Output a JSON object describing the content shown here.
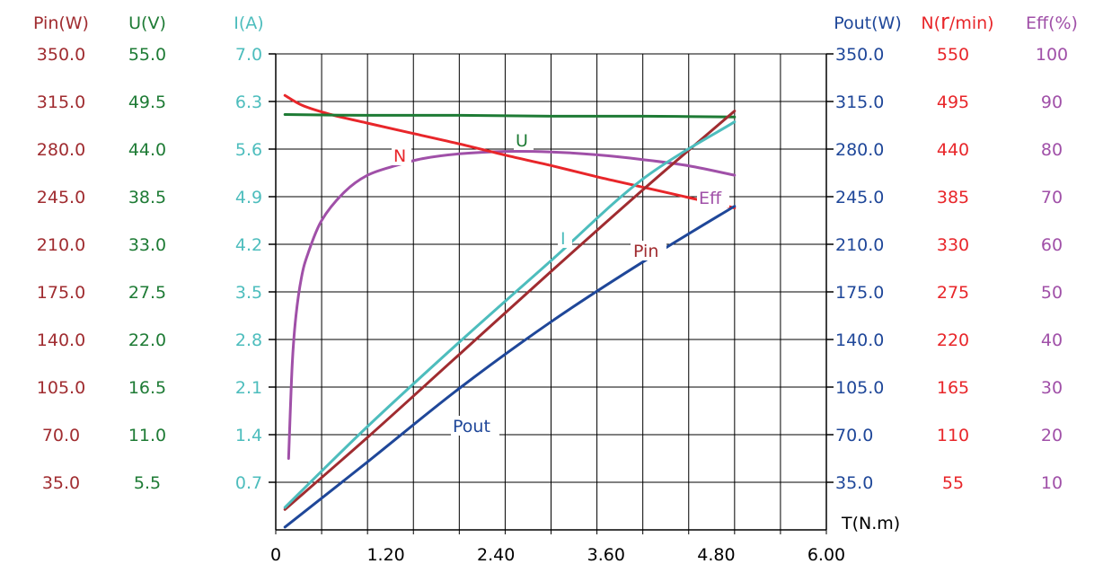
{
  "colors": {
    "pin": "#a02c30",
    "u": "#1e7b35",
    "i": "#4dbdbd",
    "pout": "#1f4799",
    "n": "#e8262a",
    "eff": "#a050a8",
    "axis": "#000000"
  },
  "chart_data": {
    "type": "line",
    "xlabel": "T(N.m)",
    "x_ticks": [
      "0",
      "1.20",
      "2.40",
      "3.60",
      "4.80",
      "6.00"
    ],
    "xlim": [
      0,
      6
    ],
    "axes": {
      "pin": {
        "label": "Pin(W)",
        "ticks": [
          "350.0",
          "315.0",
          "280.0",
          "245.0",
          "210.0",
          "175.0",
          "140.0",
          "105.0",
          "70.0",
          "35.0"
        ],
        "max": 350
      },
      "u": {
        "label": "U(V)",
        "ticks": [
          "55.0",
          "49.5",
          "44.0",
          "38.5",
          "33.0",
          "27.5",
          "22.0",
          "16.5",
          "11.0",
          "5.5"
        ],
        "max": 55
      },
      "i": {
        "label": "I(A)",
        "ticks": [
          "7.0",
          "6.3",
          "5.6",
          "4.9",
          "4.2",
          "3.5",
          "2.8",
          "2.1",
          "1.4",
          "0.7"
        ],
        "max": 7
      },
      "pout": {
        "label": "Pout(W)",
        "ticks": [
          "350.0",
          "315.0",
          "280.0",
          "245.0",
          "210.0",
          "175.0",
          "140.0",
          "105.0",
          "70.0",
          "35.0"
        ],
        "max": 350
      },
      "n": {
        "label_prefix": "N(",
        "label_r": "r",
        "label_suffix": "/min)",
        "ticks": [
          "550",
          "495",
          "440",
          "385",
          "330",
          "275",
          "220",
          "165",
          "110",
          "55"
        ],
        "max": 550
      },
      "eff": {
        "label": "Eff(%)",
        "ticks": [
          "100",
          "90",
          "80",
          "70",
          "60",
          "50",
          "40",
          "30",
          "20",
          "10"
        ],
        "max": 100
      }
    },
    "series": [
      {
        "name": "U",
        "axis": "u",
        "x": [
          0.1,
          1.0,
          2.0,
          3.0,
          4.0,
          5.0
        ],
        "y": [
          48.0,
          47.9,
          47.9,
          47.8,
          47.8,
          47.7
        ]
      },
      {
        "name": "N",
        "axis": "n",
        "x": [
          0.1,
          0.3,
          0.6,
          1.0,
          1.5,
          2.0,
          2.5,
          3.0,
          3.5,
          4.0,
          4.5,
          5.0
        ],
        "y": [
          502,
          490,
          480,
          470,
          458,
          446,
          433,
          421,
          408,
          396,
          384,
          372
        ]
      },
      {
        "name": "I",
        "axis": "i",
        "x": [
          0.1,
          1.0,
          2.0,
          3.0,
          4.0,
          5.0
        ],
        "y": [
          0.33,
          1.52,
          2.76,
          3.96,
          5.16,
          6.0
        ]
      },
      {
        "name": "Pin",
        "axis": "pin",
        "x": [
          0.1,
          1.0,
          2.0,
          3.0,
          4.0,
          5.0
        ],
        "y": [
          15,
          68,
          129,
          190,
          250,
          308
        ]
      },
      {
        "name": "Pout",
        "axis": "pout",
        "x": [
          0.1,
          1.0,
          2.0,
          3.0,
          4.0,
          5.0
        ],
        "y": [
          2,
          50,
          104,
          153,
          197,
          238
        ]
      },
      {
        "name": "Eff",
        "axis": "eff",
        "x": [
          0.14,
          0.18,
          0.22,
          0.28,
          0.35,
          0.5,
          0.75,
          1.0,
          1.3,
          1.6,
          2.0,
          2.5,
          3.0,
          3.5,
          4.0,
          4.5,
          5.0
        ],
        "y": [
          15,
          35,
          45,
          53,
          58,
          65,
          71,
          74.5,
          76.5,
          78,
          79,
          79.5,
          79.4,
          78.8,
          77.8,
          76.5,
          74.5
        ]
      }
    ],
    "series_labels": [
      "U",
      "N",
      "I",
      "Pin",
      "Pout",
      "Eff"
    ]
  }
}
